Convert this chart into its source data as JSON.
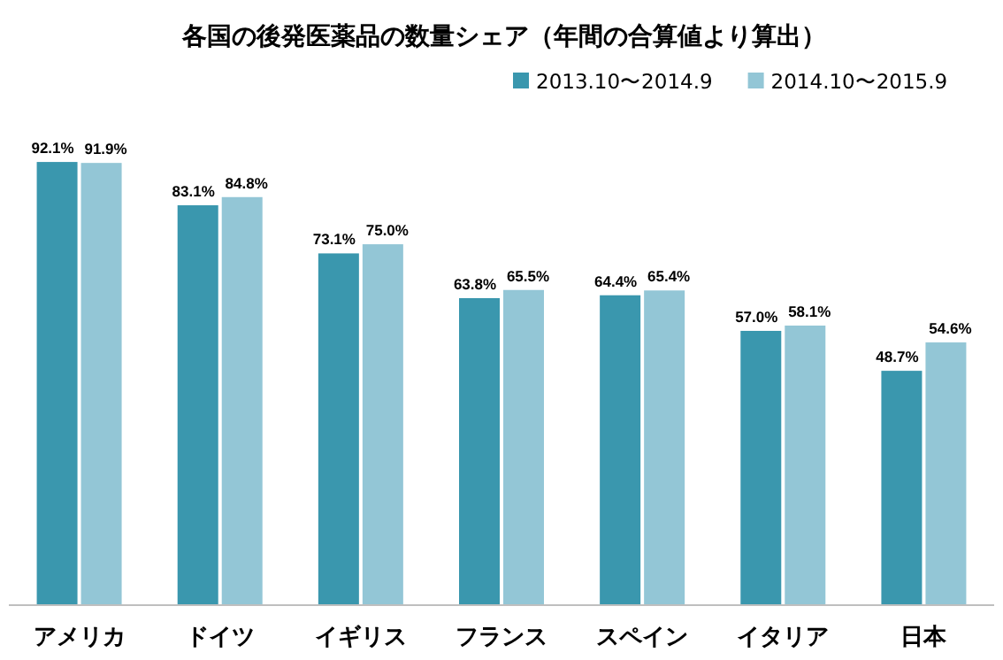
{
  "chart_data": {
    "type": "bar",
    "title": "各国の後発医薬品の数量シェア（年間の合算値より算出）",
    "relative": false,
    "legend": "top right",
    "categories": [
      "アメリカ",
      "ドイツ",
      "イギリス",
      "フランス",
      "スペイン",
      "イタリア",
      "日本"
    ],
    "series": [
      {
        "name": "2013.10〜2014.9",
        "color": "#3a97ae",
        "values": [
          92.1,
          83.1,
          73.1,
          63.8,
          64.4,
          57.0,
          48.7
        ],
        "value_labels": [
          "92.1%",
          "83.1%",
          "73.1%",
          "63.8%",
          "64.4%",
          "57.0%",
          "48.7%"
        ]
      },
      {
        "name": "2014.10〜2015.9",
        "color": "#93c6d6",
        "values": [
          91.9,
          84.8,
          75.0,
          65.5,
          65.4,
          58.1,
          54.6
        ],
        "value_labels": [
          "91.9%",
          "84.8%",
          "75.0%",
          "65.5%",
          "65.4%",
          "58.1%",
          "54.6%"
        ]
      }
    ]
  }
}
